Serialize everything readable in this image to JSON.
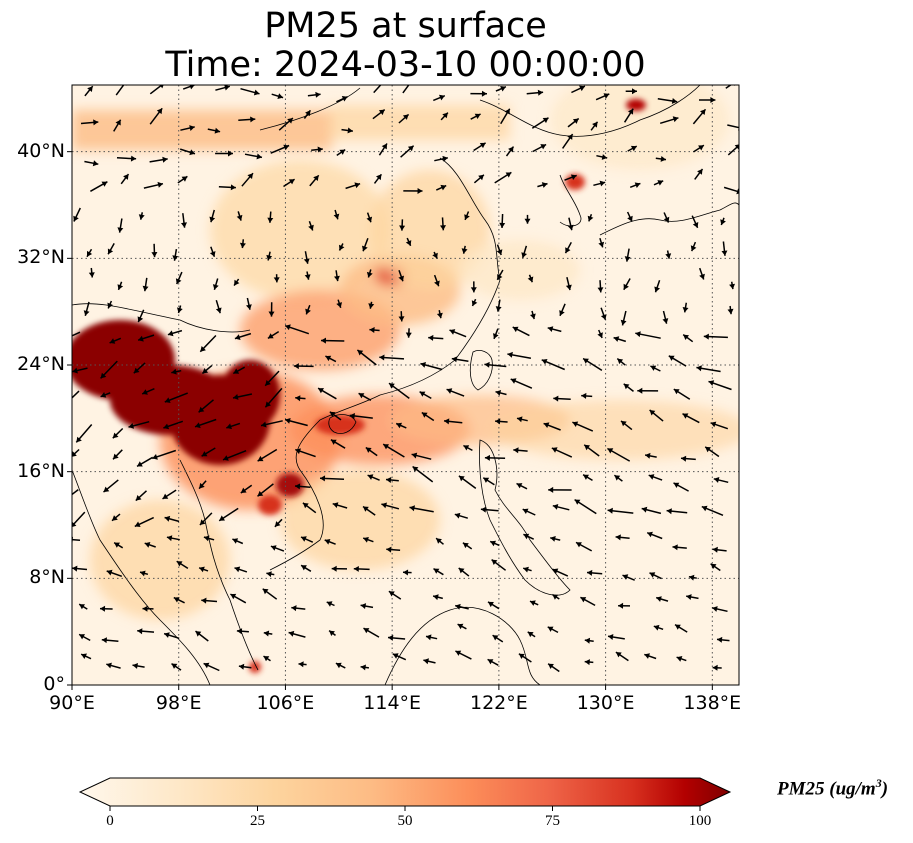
{
  "title": {
    "line1": "PM25 at surface",
    "line2": "Time: 2024-03-10 00:00:00"
  },
  "map": {
    "lon_range": [
      90,
      140
    ],
    "lat_range": [
      0,
      45
    ],
    "x_ticks": [
      {
        "value": 90,
        "label": "90°E"
      },
      {
        "value": 98,
        "label": "98°E"
      },
      {
        "value": 106,
        "label": "106°E"
      },
      {
        "value": 114,
        "label": "114°E"
      },
      {
        "value": 122,
        "label": "122°E"
      },
      {
        "value": 130,
        "label": "130°E"
      },
      {
        "value": 138,
        "label": "138°E"
      }
    ],
    "y_ticks": [
      {
        "value": 0,
        "label": "0°"
      },
      {
        "value": 8,
        "label": "8°N"
      },
      {
        "value": 16,
        "label": "16°N"
      },
      {
        "value": 24,
        "label": "24°N"
      },
      {
        "value": 32,
        "label": "32°N"
      },
      {
        "value": 40,
        "label": "40°N"
      }
    ],
    "gridlines": "dotted",
    "colormap": "OrRd",
    "colors": {
      "low": "#fff7ec",
      "mid": "#fc8d59",
      "high": "#7f0000",
      "coast": "#000000",
      "vectors": "#000000"
    }
  },
  "colorbar": {
    "label": "PM25 (ug/m",
    "label_sup": "3",
    "label_close": ")",
    "min": 0,
    "max": 100,
    "extend": "both",
    "ticks": [
      {
        "value": 0,
        "label": "0"
      },
      {
        "value": 25,
        "label": "25"
      },
      {
        "value": 50,
        "label": "50"
      },
      {
        "value": 75,
        "label": "75"
      },
      {
        "value": 100,
        "label": "100"
      }
    ]
  }
}
